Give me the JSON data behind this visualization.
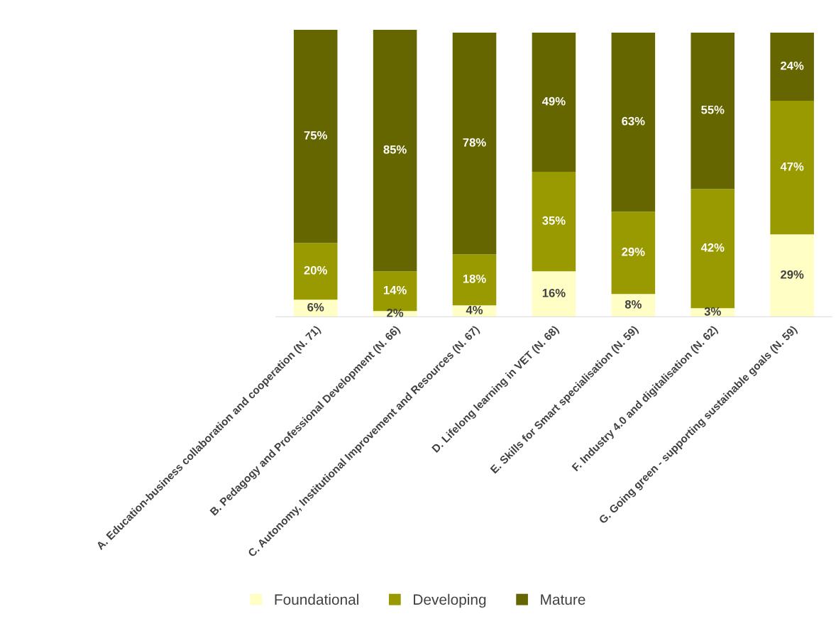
{
  "chart_data": {
    "type": "bar",
    "stacked": true,
    "legend": "bottom",
    "grid": false,
    "categories": [
      "A. Education-business collaboration and cooperation (N. 71)",
      "B. Pedagogy and Professional Development (N. 66)",
      "C. Autonomy, Institutional Improvement and Resources (N. 67)",
      "D. Lifelong learning in VET (N. 68)",
      "E. Skills for Smart specialisation (N. 59)",
      "F. Industry 4.0 and digitalisation (N. 62)",
      "G. Going green - supporting sustainable goals (N. 59)"
    ],
    "series": [
      {
        "name": "Foundational",
        "color": "#ffffc5",
        "values": [
          6,
          2,
          4,
          16,
          8,
          3,
          29
        ],
        "value_labels": [
          "6%",
          "2%",
          "4%",
          "16%",
          "8%",
          "3%",
          "29%"
        ]
      },
      {
        "name": "Developing",
        "color": "#999900",
        "values": [
          20,
          14,
          18,
          35,
          29,
          42,
          47
        ],
        "value_labels": [
          "20%",
          "14%",
          "18%",
          "35%",
          "29%",
          "42%",
          "47%"
        ]
      },
      {
        "name": "Mature",
        "color": "#666600",
        "values": [
          75,
          85,
          78,
          49,
          63,
          55,
          24
        ],
        "value_labels": [
          "75%",
          "85%",
          "78%",
          "49%",
          "63%",
          "55%",
          "24%"
        ]
      }
    ]
  }
}
